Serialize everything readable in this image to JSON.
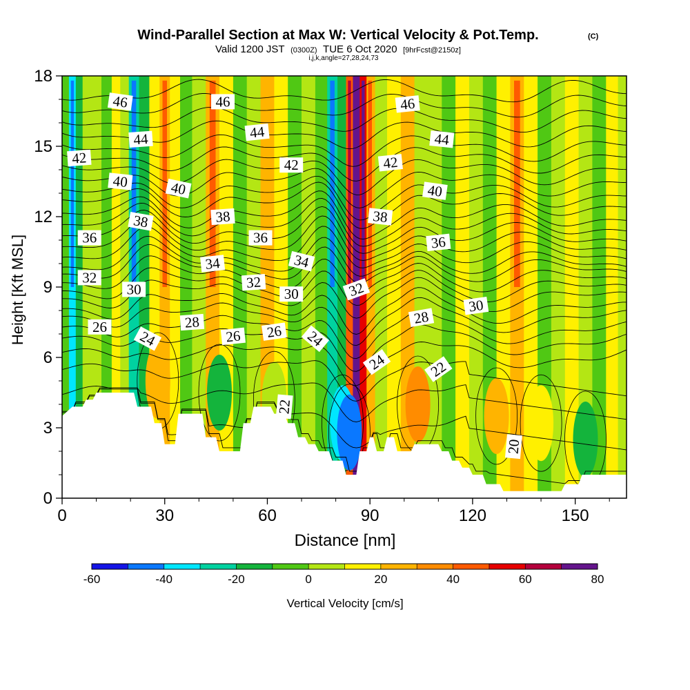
{
  "header": {
    "title": "Wind-Parallel Section at Max W: Vertical Velocity & Pot.Temp.",
    "title_mark": "(C)",
    "valid_prefix": "Valid 1200 JST",
    "valid_utc": "(0300Z)",
    "valid_date": "TUE 6 Oct 2020",
    "forecast_info": "[9hrFcst@2150z]",
    "ijk_info": "i,j,k,angle=27,28,24,73"
  },
  "chart_data": {
    "type": "heatmap",
    "xlabel": "Distance [nm]",
    "ylabel": "Height [Kft MSL]",
    "xlim": [
      0,
      165
    ],
    "ylim": [
      0,
      18
    ],
    "x_ticks": [
      "0",
      "30",
      "60",
      "90",
      "120",
      "150"
    ],
    "x_tick_values": [
      0,
      30,
      60,
      90,
      120,
      150
    ],
    "y_ticks": [
      "0",
      "3",
      "6",
      "9",
      "12",
      "15",
      "18"
    ],
    "y_tick_values": [
      0,
      3,
      6,
      9,
      12,
      15,
      18
    ],
    "x_minor_step": 10,
    "y_minor_step": 1,
    "colorbar": {
      "label": "Vertical Velocity [cm/s]",
      "tick_labels": [
        "-60",
        "-40",
        "-20",
        "0",
        "20",
        "40",
        "60",
        "80"
      ],
      "tick_values": [
        -60,
        -40,
        -20,
        0,
        20,
        40,
        60,
        80
      ],
      "range": [
        -60,
        80
      ],
      "step": 10,
      "colors": [
        "#1414e6",
        "#0a78ff",
        "#00e6ff",
        "#00d2a0",
        "#14b43c",
        "#50c814",
        "#b4e614",
        "#fff000",
        "#ffb400",
        "#ff8c00",
        "#ff5a00",
        "#e60000",
        "#b4003c",
        "#64148c"
      ]
    },
    "columns": [
      {
        "x": 1,
        "w": -5
      },
      {
        "x": 3,
        "w": -35
      },
      {
        "x": 5,
        "w": -20
      },
      {
        "x": 7,
        "w": 0
      },
      {
        "x": 10,
        "w": 5
      },
      {
        "x": 13,
        "w": -5
      },
      {
        "x": 16,
        "w": 10
      },
      {
        "x": 18,
        "w": 0
      },
      {
        "x": 21,
        "w": -30
      },
      {
        "x": 24,
        "w": -15
      },
      {
        "x": 27,
        "w": 15
      },
      {
        "x": 30,
        "w": 25
      },
      {
        "x": 33,
        "w": 10
      },
      {
        "x": 36,
        "w": -10
      },
      {
        "x": 40,
        "w": 5
      },
      {
        "x": 44,
        "w": 25
      },
      {
        "x": 48,
        "w": 15
      },
      {
        "x": 52,
        "w": -10
      },
      {
        "x": 56,
        "w": 5
      },
      {
        "x": 60,
        "w": 20
      },
      {
        "x": 64,
        "w": 10
      },
      {
        "x": 68,
        "w": -5
      },
      {
        "x": 72,
        "w": 5
      },
      {
        "x": 76,
        "w": -10
      },
      {
        "x": 79,
        "w": -30
      },
      {
        "x": 82,
        "w": -15
      },
      {
        "x": 84,
        "w": 45
      },
      {
        "x": 86,
        "w": 80
      },
      {
        "x": 88,
        "w": 55
      },
      {
        "x": 90,
        "w": 25
      },
      {
        "x": 93,
        "w": 5
      },
      {
        "x": 97,
        "w": 15
      },
      {
        "x": 101,
        "w": 20
      },
      {
        "x": 105,
        "w": 0
      },
      {
        "x": 109,
        "w": 5
      },
      {
        "x": 113,
        "w": -10
      },
      {
        "x": 117,
        "w": 15
      },
      {
        "x": 121,
        "w": 5
      },
      {
        "x": 125,
        "w": -5
      },
      {
        "x": 129,
        "w": 10
      },
      {
        "x": 133,
        "w": 25
      },
      {
        "x": 137,
        "w": 10
      },
      {
        "x": 141,
        "w": -5
      },
      {
        "x": 145,
        "w": 5
      },
      {
        "x": 149,
        "w": 15
      },
      {
        "x": 153,
        "w": 5
      },
      {
        "x": 157,
        "w": -5
      },
      {
        "x": 161,
        "w": 10
      },
      {
        "x": 164,
        "w": 5
      }
    ],
    "low_level_anomalies": [
      {
        "x": 82,
        "y": 3.2,
        "w": -35
      },
      {
        "x": 84,
        "y": 2.8,
        "w": -50
      },
      {
        "x": 104,
        "y": 4,
        "w": 30
      },
      {
        "x": 127,
        "y": 3.5,
        "w": 20
      },
      {
        "x": 140,
        "y": 3.2,
        "w": 15
      },
      {
        "x": 153,
        "y": 2.5,
        "w": -15
      },
      {
        "x": 28,
        "y": 5,
        "w": 25
      },
      {
        "x": 46,
        "y": 4.5,
        "w": -15
      },
      {
        "x": 62,
        "y": 4.2,
        "w": 5
      }
    ],
    "terrain": [
      [
        0,
        3.5
      ],
      [
        3,
        3.9
      ],
      [
        6,
        3.9
      ],
      [
        7,
        4.2
      ],
      [
        9,
        4.2
      ],
      [
        10,
        4.5
      ],
      [
        21,
        4.5
      ],
      [
        22,
        3.9
      ],
      [
        26,
        3.9
      ],
      [
        27,
        3.2
      ],
      [
        29,
        3.2
      ],
      [
        30,
        2.3
      ],
      [
        33,
        2.3
      ],
      [
        34,
        3.6
      ],
      [
        41,
        3.6
      ],
      [
        42,
        2.6
      ],
      [
        45,
        2.6
      ],
      [
        46,
        2.0
      ],
      [
        52,
        2.0
      ],
      [
        53,
        3.2
      ],
      [
        55,
        3.2
      ],
      [
        56,
        3.9
      ],
      [
        61,
        3.9
      ],
      [
        62,
        3.6
      ],
      [
        65,
        3.6
      ],
      [
        66,
        3.2
      ],
      [
        68,
        3.2
      ],
      [
        69,
        2.6
      ],
      [
        71,
        2.6
      ],
      [
        72,
        2.3
      ],
      [
        74,
        2.3
      ],
      [
        75,
        2.0
      ],
      [
        78,
        2.0
      ],
      [
        79,
        1.6
      ],
      [
        82,
        1.6
      ],
      [
        83,
        1.0
      ],
      [
        86,
        1.0
      ],
      [
        87,
        2.0
      ],
      [
        89,
        2.0
      ],
      [
        90,
        2.6
      ],
      [
        91,
        2.6
      ],
      [
        92,
        2.0
      ],
      [
        94,
        2.0
      ],
      [
        95,
        2.6
      ],
      [
        97,
        2.6
      ],
      [
        98,
        2.0
      ],
      [
        102,
        2.0
      ],
      [
        103,
        2.3
      ],
      [
        110,
        2.3
      ],
      [
        111,
        2.0
      ],
      [
        113,
        2.0
      ],
      [
        114,
        1.6
      ],
      [
        116,
        1.6
      ],
      [
        117,
        1.3
      ],
      [
        119,
        1.3
      ],
      [
        120,
        1.0
      ],
      [
        123,
        1.0
      ],
      [
        124,
        0.6
      ],
      [
        128,
        0.6
      ],
      [
        129,
        0.3
      ],
      [
        133,
        0.3
      ],
      [
        134,
        0.3
      ],
      [
        146,
        0.3
      ],
      [
        147,
        0.6
      ],
      [
        151,
        0.6
      ],
      [
        152,
        1.0
      ],
      [
        158,
        1.0
      ],
      [
        165,
        1.0
      ]
    ],
    "isentropes": [
      {
        "theta": 20,
        "base": 1.2
      },
      {
        "theta": 21,
        "base": 3.0
      },
      {
        "theta": 22,
        "base": 4.3
      },
      {
        "theta": 23,
        "base": 5.3
      },
      {
        "theta": 24,
        "base": 6.0
      },
      {
        "theta": 25,
        "base": 6.6
      },
      {
        "theta": 26,
        "base": 7.1
      },
      {
        "theta": 27,
        "base": 7.6
      },
      {
        "theta": 28,
        "base": 8.0
      },
      {
        "theta": 29,
        "base": 8.5
      },
      {
        "theta": 30,
        "base": 8.9
      },
      {
        "theta": 31,
        "base": 9.3
      },
      {
        "theta": 32,
        "base": 9.7
      },
      {
        "theta": 33,
        "base": 10.0
      },
      {
        "theta": 34,
        "base": 10.4
      },
      {
        "theta": 35,
        "base": 10.8
      },
      {
        "theta": 36,
        "base": 11.2
      },
      {
        "theta": 37,
        "base": 11.6
      },
      {
        "theta": 38,
        "base": 12.0
      },
      {
        "theta": 39,
        "base": 12.5
      },
      {
        "theta": 40,
        "base": 12.9
      },
      {
        "theta": 41,
        "base": 13.4
      },
      {
        "theta": 42,
        "base": 13.9
      },
      {
        "theta": 43,
        "base": 14.4
      },
      {
        "theta": 44,
        "base": 14.9
      },
      {
        "theta": 45,
        "base": 15.5
      },
      {
        "theta": 46,
        "base": 16.1
      },
      {
        "theta": 47,
        "base": 16.7
      },
      {
        "theta": 48,
        "base": 17.3
      }
    ],
    "contour_labels": [
      {
        "text": "46",
        "x": 17,
        "y": 16.9,
        "rot": 8
      },
      {
        "text": "46",
        "x": 47,
        "y": 16.9,
        "rot": 0
      },
      {
        "text": "46",
        "x": 101,
        "y": 16.8,
        "rot": -6
      },
      {
        "text": "44",
        "x": 23,
        "y": 15.3,
        "rot": -4
      },
      {
        "text": "44",
        "x": 57,
        "y": 15.6,
        "rot": -6
      },
      {
        "text": "44",
        "x": 111,
        "y": 15.3,
        "rot": 6
      },
      {
        "text": "42",
        "x": 5,
        "y": 14.5,
        "rot": -4
      },
      {
        "text": "42",
        "x": 67,
        "y": 14.2,
        "rot": 0
      },
      {
        "text": "42",
        "x": 96,
        "y": 14.3,
        "rot": -6
      },
      {
        "text": "40",
        "x": 17,
        "y": 13.5,
        "rot": 6
      },
      {
        "text": "40",
        "x": 34,
        "y": 13.2,
        "rot": 12
      },
      {
        "text": "40",
        "x": 109,
        "y": 13.1,
        "rot": 8
      },
      {
        "text": "38",
        "x": 23,
        "y": 11.8,
        "rot": 10
      },
      {
        "text": "38",
        "x": 47,
        "y": 12.0,
        "rot": -4
      },
      {
        "text": "38",
        "x": 93,
        "y": 12.0,
        "rot": 6
      },
      {
        "text": "36",
        "x": 8,
        "y": 11.1,
        "rot": 0
      },
      {
        "text": "36",
        "x": 58,
        "y": 11.1,
        "rot": 0
      },
      {
        "text": "36",
        "x": 110,
        "y": 10.9,
        "rot": -6
      },
      {
        "text": "34",
        "x": 44,
        "y": 10.0,
        "rot": -6
      },
      {
        "text": "34",
        "x": 70,
        "y": 10.1,
        "rot": 14
      },
      {
        "text": "32",
        "x": 8,
        "y": 9.4,
        "rot": 0
      },
      {
        "text": "32",
        "x": 56,
        "y": 9.2,
        "rot": -4
      },
      {
        "text": "32",
        "x": 86,
        "y": 8.9,
        "rot": -20
      },
      {
        "text": "30",
        "x": 21,
        "y": 8.9,
        "rot": 0
      },
      {
        "text": "30",
        "x": 67,
        "y": 8.7,
        "rot": 0
      },
      {
        "text": "30",
        "x": 121,
        "y": 8.2,
        "rot": -8
      },
      {
        "text": "28",
        "x": 38,
        "y": 7.5,
        "rot": -4
      },
      {
        "text": "28",
        "x": 105,
        "y": 7.7,
        "rot": -10
      },
      {
        "text": "26",
        "x": 11,
        "y": 7.3,
        "rot": 0
      },
      {
        "text": "26",
        "x": 50,
        "y": 6.9,
        "rot": -6
      },
      {
        "text": "26",
        "x": 62,
        "y": 7.1,
        "rot": -8
      },
      {
        "text": "24",
        "x": 25,
        "y": 6.8,
        "rot": 28
      },
      {
        "text": "24",
        "x": 74,
        "y": 6.8,
        "rot": 40
      },
      {
        "text": "24",
        "x": 92,
        "y": 5.8,
        "rot": -35
      },
      {
        "text": "22",
        "x": 110,
        "y": 5.5,
        "rot": -35
      },
      {
        "text": "22",
        "x": 65,
        "y": 3.9,
        "rot": -85
      },
      {
        "text": "20",
        "x": 132,
        "y": 2.2,
        "rot": -85
      }
    ]
  }
}
